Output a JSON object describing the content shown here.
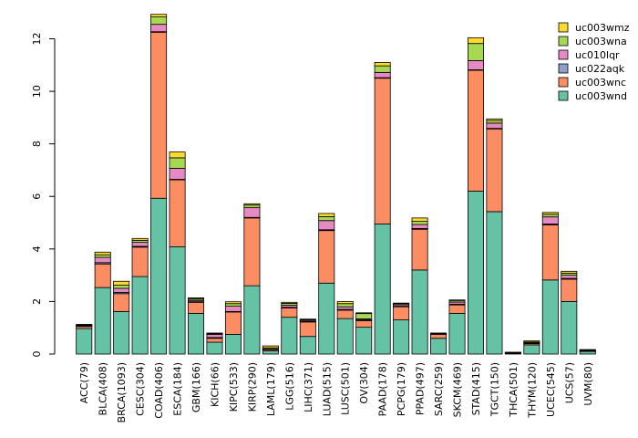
{
  "chart_data": {
    "type": "bar",
    "stacked": true,
    "title": "",
    "xlabel": "",
    "ylabel": "",
    "ylim": [
      0,
      13
    ],
    "yticks": [
      0,
      2,
      4,
      6,
      8,
      10,
      12
    ],
    "legend_position": "top-right",
    "categories": [
      "ACC(79)",
      "BLCA(408)",
      "BRCA(1093)",
      "CESC(304)",
      "COAD(406)",
      "ESCA(184)",
      "GBM(166)",
      "KICH(66)",
      "KIPC(533)",
      "KIRP(290)",
      "LAML(179)",
      "LGG(516)",
      "LIHC(371)",
      "LUAD(515)",
      "LUSC(501)",
      "OV(304)",
      "PAAD(178)",
      "PCPG(179)",
      "PPAD(497)",
      "SARC(259)",
      "SKCM(469)",
      "STAD(415)",
      "TGCT(150)",
      "THCA(501)",
      "THYM(120)",
      "UCEC(545)",
      "UCS(57)",
      "UVM(80)"
    ],
    "series": [
      {
        "name": "uc003wnd",
        "color": "#66C2A5",
        "values": [
          0.97,
          2.53,
          1.62,
          2.95,
          5.93,
          4.08,
          1.55,
          0.45,
          0.75,
          2.6,
          0.12,
          1.4,
          0.67,
          2.7,
          1.35,
          1.02,
          4.95,
          1.3,
          3.2,
          0.6,
          1.55,
          6.2,
          5.42,
          0.02,
          0.35,
          2.82,
          2.0,
          0.1
        ]
      },
      {
        "name": "uc003wnc",
        "color": "#FC8D62",
        "values": [
          0.08,
          0.9,
          0.68,
          1.12,
          6.32,
          2.55,
          0.42,
          0.15,
          0.85,
          2.58,
          0.05,
          0.35,
          0.55,
          2.0,
          0.32,
          0.25,
          5.55,
          0.5,
          1.55,
          0.15,
          0.32,
          4.6,
          3.15,
          0.01,
          0.05,
          2.1,
          0.85,
          0.01
        ]
      },
      {
        "name": "uc022aqk",
        "color": "#8DA0CB",
        "values": [
          0.01,
          0.05,
          0.05,
          0.03,
          0.02,
          0.02,
          0.04,
          0.03,
          0.02,
          0.02,
          0.01,
          0.03,
          0.02,
          0.03,
          0.03,
          0.03,
          0.02,
          0.02,
          0.03,
          0.01,
          0.03,
          0.02,
          0.02,
          0.01,
          0.01,
          0.03,
          0.03,
          0.01
        ]
      },
      {
        "name": "uc010lqr",
        "color": "#E78AC3",
        "values": [
          0.03,
          0.2,
          0.15,
          0.15,
          0.28,
          0.42,
          0.04,
          0.12,
          0.2,
          0.37,
          0.02,
          0.08,
          0.04,
          0.35,
          0.1,
          0.04,
          0.2,
          0.06,
          0.15,
          0.02,
          0.08,
          0.35,
          0.2,
          0.01,
          0.02,
          0.27,
          0.12,
          0.01
        ]
      },
      {
        "name": "uc003wna",
        "color": "#A6D854",
        "values": [
          0.02,
          0.1,
          0.12,
          0.08,
          0.28,
          0.4,
          0.06,
          0.03,
          0.1,
          0.1,
          0.04,
          0.07,
          0.03,
          0.15,
          0.12,
          0.2,
          0.25,
          0.04,
          0.12,
          0.01,
          0.06,
          0.65,
          0.1,
          0.01,
          0.03,
          0.1,
          0.08,
          0.03
        ]
      },
      {
        "name": "uc003wmz",
        "color": "#FFD92F",
        "values": [
          0.02,
          0.1,
          0.15,
          0.07,
          0.1,
          0.22,
          0.03,
          0.02,
          0.07,
          0.05,
          0.07,
          0.04,
          0.02,
          0.12,
          0.08,
          0.03,
          0.13,
          0.02,
          0.13,
          0.01,
          0.02,
          0.22,
          0.06,
          0.01,
          0.04,
          0.07,
          0.07,
          0.01
        ]
      }
    ]
  }
}
